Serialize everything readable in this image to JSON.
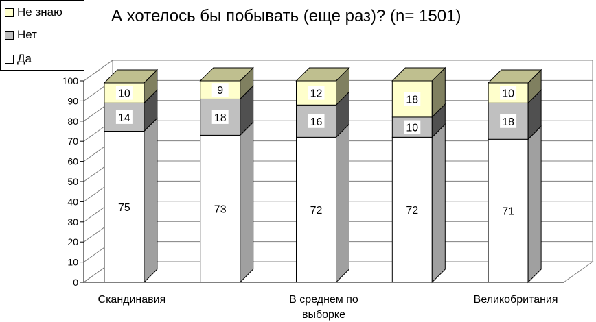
{
  "chart_data": {
    "type": "bar",
    "stacked": true,
    "three_d": true,
    "title": "А хотелось бы побывать (еще раз)? (n= 1501)",
    "categories": [
      "Скандинавия",
      "",
      "В среднем по выборке",
      "",
      "Великобритания"
    ],
    "category_label_lines": [
      [
        "Скандинавия"
      ],
      [],
      [
        "В среднем по",
        "выборке"
      ],
      [],
      [
        "Великобритания"
      ]
    ],
    "series": [
      {
        "name": "Да",
        "color": "#ffffff",
        "values": [
          75,
          73,
          72,
          72,
          71
        ]
      },
      {
        "name": "Нет",
        "color": "#c0c0c0",
        "values": [
          14,
          18,
          16,
          10,
          18
        ]
      },
      {
        "name": "Не знаю",
        "color": "#ffffcc",
        "values": [
          10,
          9,
          12,
          18,
          10
        ]
      }
    ],
    "legend_order": [
      "Не знаю",
      "Нет",
      "Да"
    ],
    "ylim": [
      0,
      100
    ],
    "yticks": [
      0,
      10,
      20,
      30,
      40,
      50,
      60,
      70,
      80,
      90,
      100
    ],
    "grid": true,
    "legend_position": "top-left"
  }
}
